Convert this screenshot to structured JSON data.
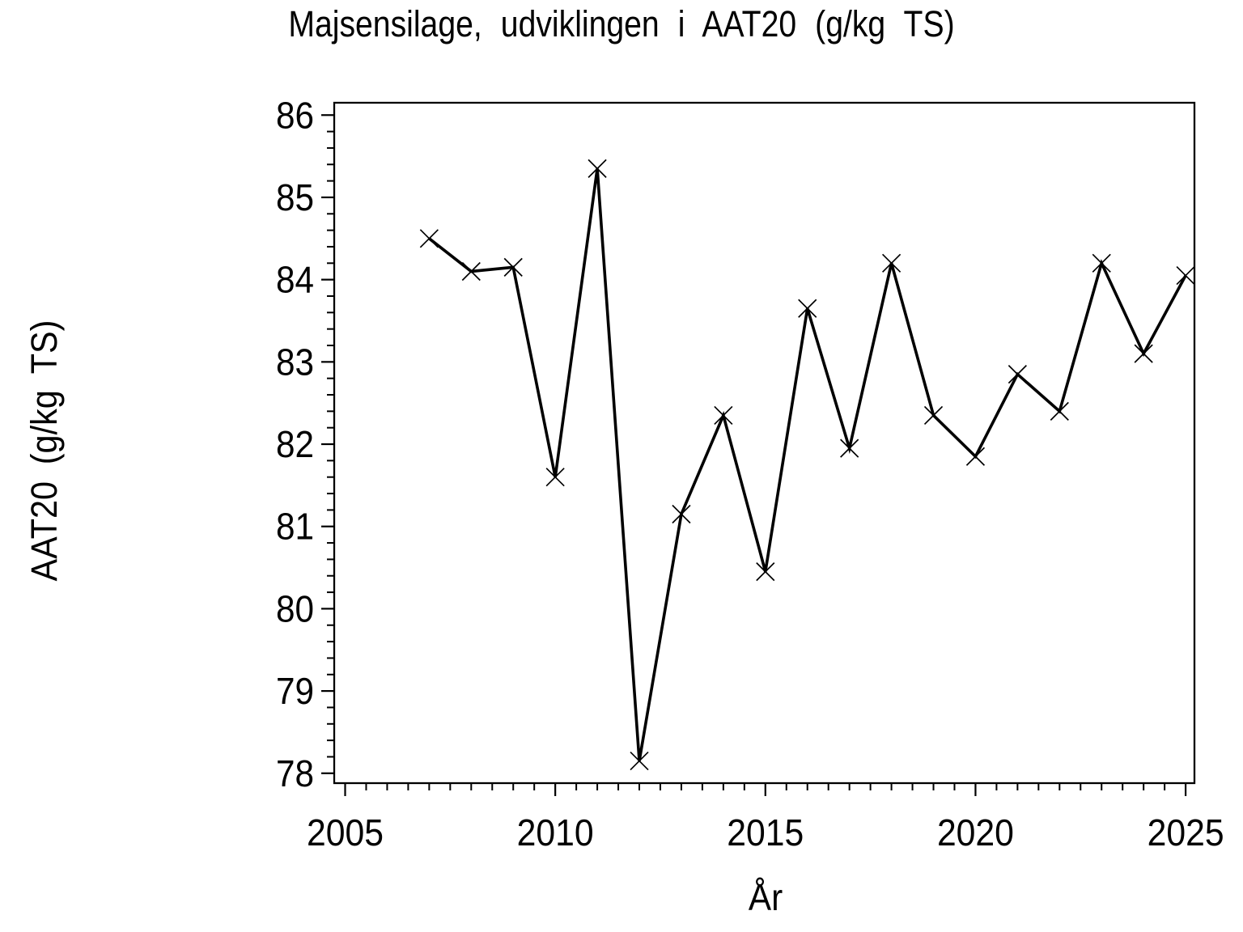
{
  "page": {
    "background": "#ffffff",
    "foreground": "#000000"
  },
  "chart_data": {
    "type": "line",
    "title": "Majsensilage, udviklingen i AAT20 (g/kg TS)",
    "xlabel": "År",
    "ylabel": "AAT20 (g/kg TS)",
    "x": [
      2007,
      2008,
      2009,
      2010,
      2011,
      2012,
      2013,
      2014,
      2015,
      2016,
      2017,
      2018,
      2019,
      2020,
      2021,
      2022,
      2023,
      2024,
      2025
    ],
    "y": [
      84.5,
      84.1,
      84.15,
      81.6,
      85.35,
      78.15,
      81.15,
      82.35,
      80.45,
      83.65,
      81.95,
      84.2,
      82.35,
      81.85,
      82.85,
      82.4,
      84.2,
      83.1,
      84.05
    ],
    "series_name": "AAT20",
    "marker": "x-cross",
    "line_color": "#000000",
    "marker_color": "#000000",
    "xlim": [
      2004.74,
      2025.21
    ],
    "ylim": [
      77.88,
      86.15
    ],
    "x_ticks_major": [
      2005,
      2010,
      2015,
      2020,
      2025
    ],
    "x_tick_labels": [
      "2005",
      "2010",
      "2015",
      "2020",
      "2025"
    ],
    "x_minor_step": 0.5,
    "y_ticks_major": [
      78,
      79,
      80,
      81,
      82,
      83,
      84,
      85,
      86
    ],
    "y_tick_labels": [
      "78",
      "79",
      "80",
      "81",
      "82",
      "83",
      "84",
      "85",
      "86"
    ],
    "y_minor_step": 0.2,
    "grid": false,
    "legend": null
  }
}
